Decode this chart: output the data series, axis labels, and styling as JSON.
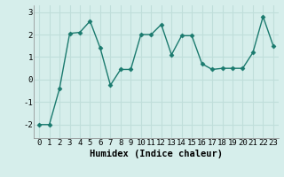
{
  "x": [
    0,
    1,
    2,
    3,
    4,
    5,
    6,
    7,
    8,
    9,
    10,
    11,
    12,
    13,
    14,
    15,
    16,
    17,
    18,
    19,
    20,
    21,
    22,
    23
  ],
  "y": [
    -2.0,
    -2.0,
    -0.4,
    2.05,
    2.1,
    2.6,
    1.4,
    -0.25,
    0.45,
    0.45,
    2.0,
    2.0,
    2.45,
    1.1,
    1.95,
    1.95,
    0.7,
    0.45,
    0.5,
    0.5,
    0.5,
    1.2,
    2.8,
    1.5
  ],
  "line_color": "#1a7a6e",
  "marker": "D",
  "markersize": 2.5,
  "linewidth": 1.0,
  "xlabel": "Humidex (Indice chaleur)",
  "xlim": [
    -0.5,
    23.5
  ],
  "ylim": [
    -2.6,
    3.3
  ],
  "yticks": [
    -2,
    -1,
    0,
    1,
    2,
    3
  ],
  "xticks": [
    0,
    1,
    2,
    3,
    4,
    5,
    6,
    7,
    8,
    9,
    10,
    11,
    12,
    13,
    14,
    15,
    16,
    17,
    18,
    19,
    20,
    21,
    22,
    23
  ],
  "background_color": "#d6eeeb",
  "grid_color": "#c0deda",
  "tick_fontsize": 6.5,
  "label_fontsize": 7.5
}
